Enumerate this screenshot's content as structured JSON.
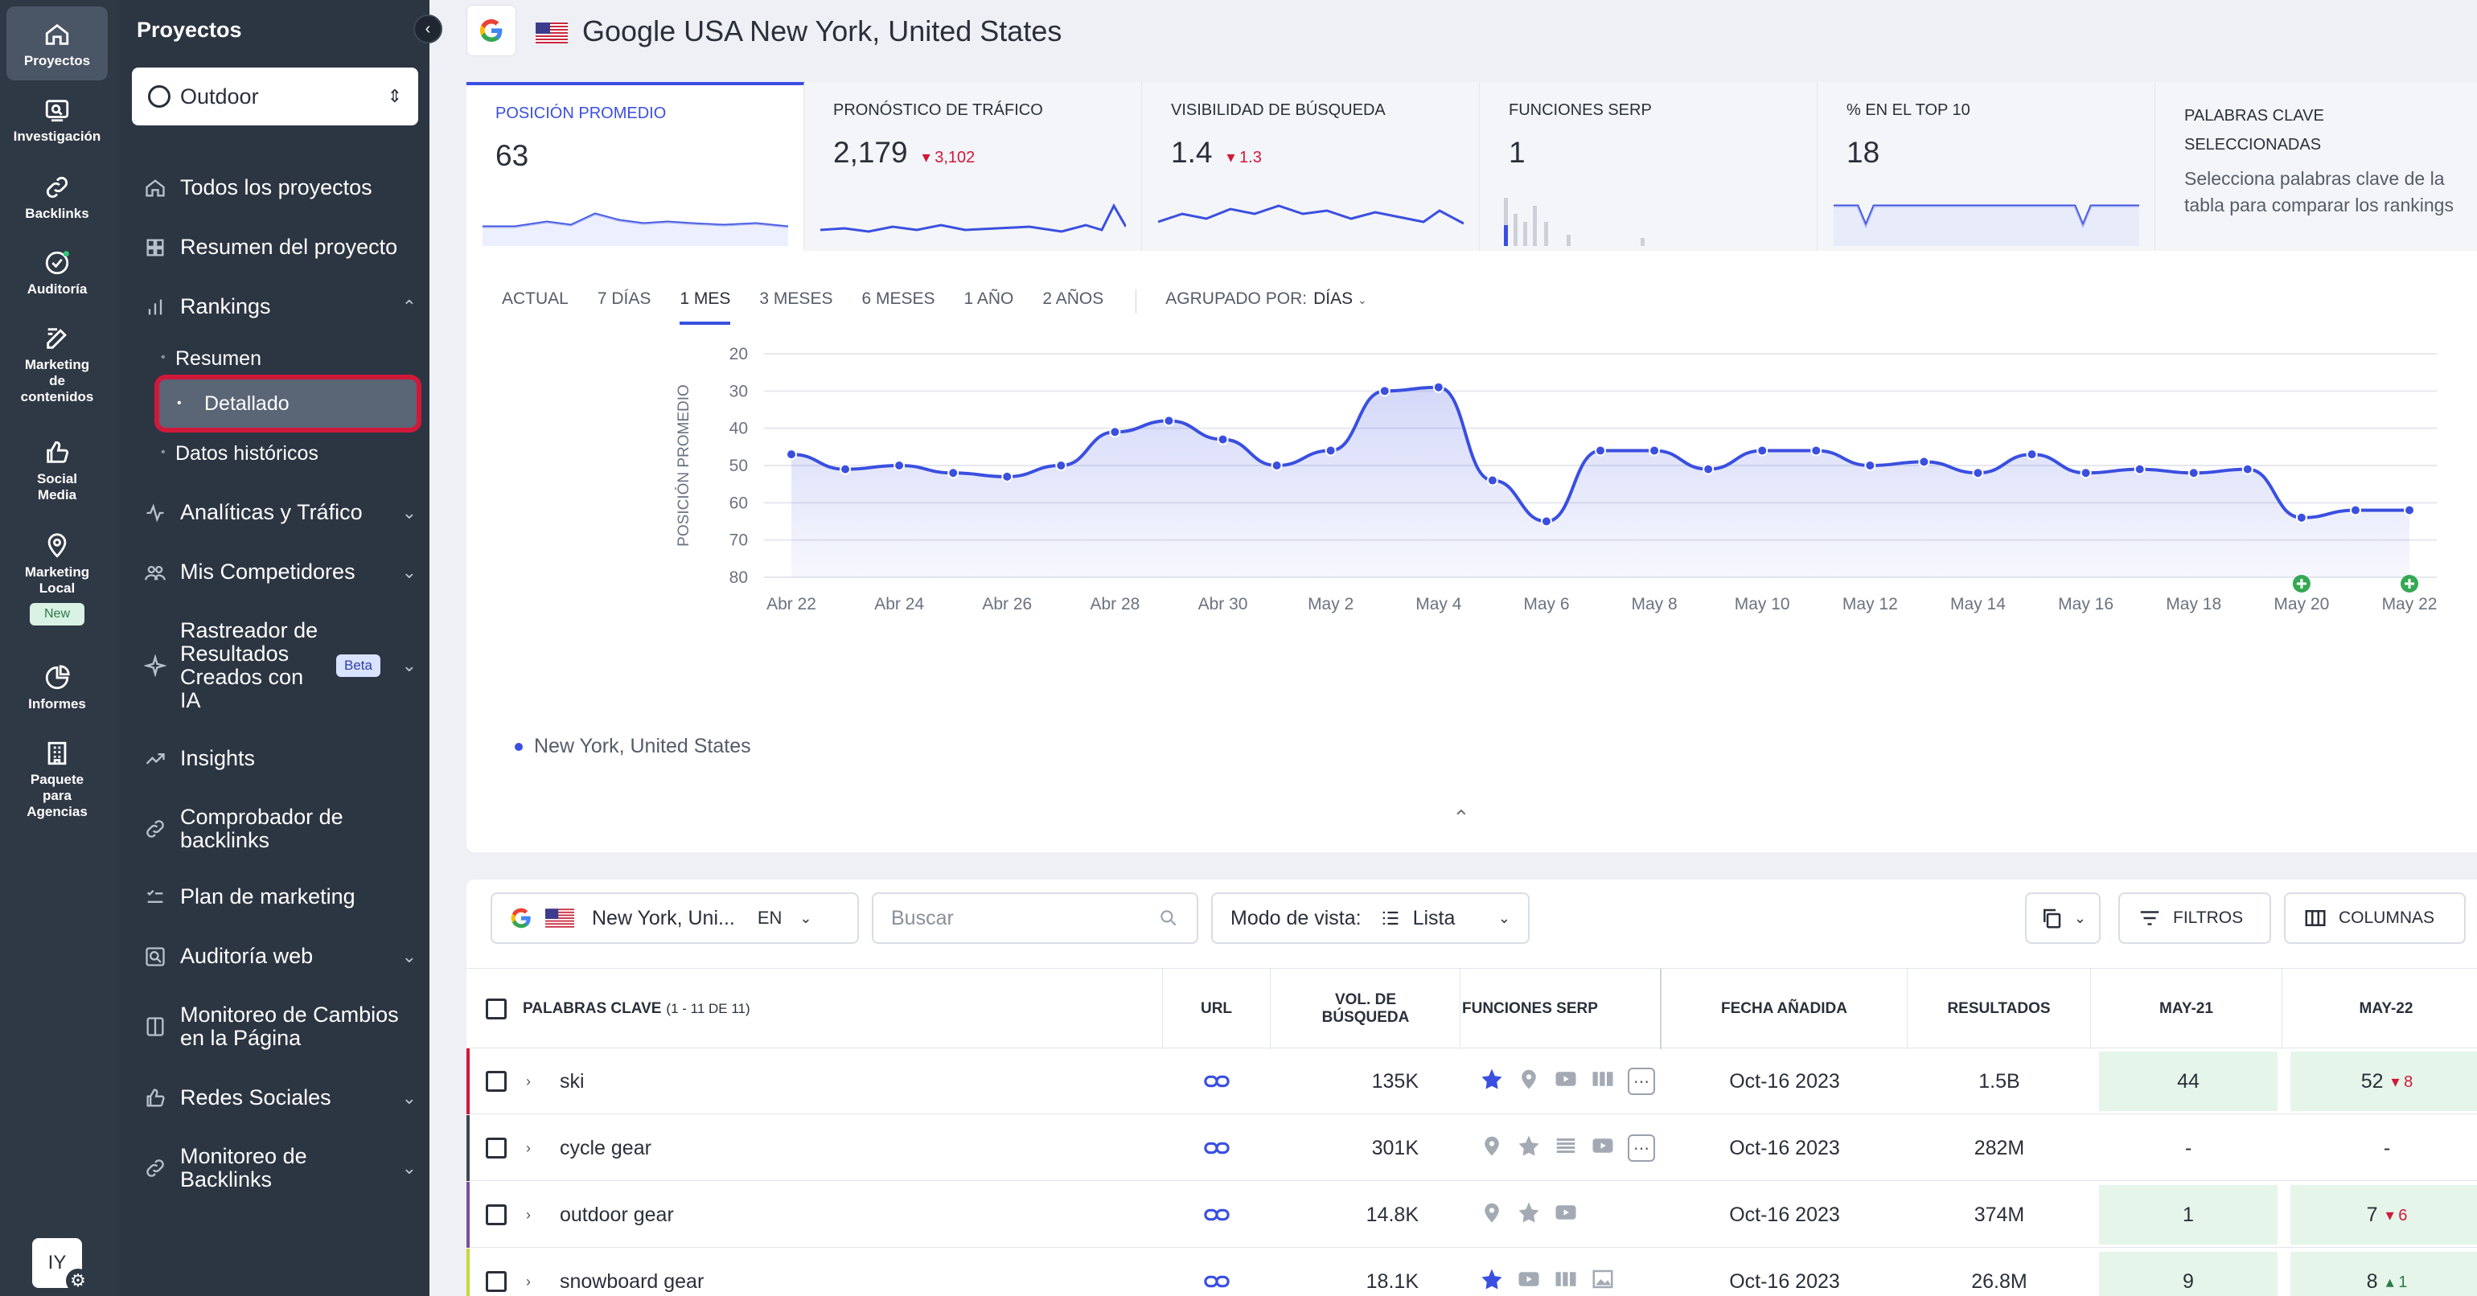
{
  "rail": {
    "items": [
      {
        "label": "Proyectos",
        "icon": "home-icon"
      },
      {
        "label": "Investigación",
        "icon": "research-icon"
      },
      {
        "label": "Backlinks",
        "icon": "link-icon"
      },
      {
        "label": "Auditoría",
        "icon": "audit-icon"
      },
      {
        "label": "Marketing de contenidos",
        "icon": "edit-icon"
      },
      {
        "label": "Social Media",
        "icon": "thumbs-up-icon"
      },
      {
        "label": "Marketing Local",
        "icon": "map-pin-icon",
        "badge": "New"
      },
      {
        "label": "Informes",
        "icon": "pie-chart-icon"
      },
      {
        "label": "Paquete para Agencias",
        "icon": "building-icon"
      }
    ],
    "avatar": "IY"
  },
  "sidebar": {
    "title": "Proyectos",
    "project": "Outdoor",
    "nav": {
      "todos": "Todos los proyectos",
      "resumen_proyecto": "Resumen del proyecto",
      "rankings": "Rankings",
      "sub_resumen": "Resumen",
      "sub_detallado": "Detallado",
      "sub_historicos": "Datos históricos",
      "analiticas": "Analíticas y Tráfico",
      "competidores": "Mis Competidores",
      "rastreador": "Rastreador de Resultados Creados con IA",
      "beta": "Beta",
      "insights": "Insights",
      "comprobador": "Comprobador de backlinks",
      "plan": "Plan de marketing",
      "auditoria_web": "Auditoría web",
      "monitoreo_cambios": "Monitoreo de Cambios en la Página",
      "redes": "Redes Sociales",
      "monitoreo_backlinks": "Monitoreo de Backlinks"
    }
  },
  "header": {
    "title": "Google USA New York, United States"
  },
  "metrics": [
    {
      "label": "Posición promedio",
      "value": "63",
      "delta": ""
    },
    {
      "label": "Pronóstico de tráfico",
      "value": "2,179",
      "delta": "3,102"
    },
    {
      "label": "Visibilidad de búsqueda",
      "value": "1.4",
      "delta": "1.3"
    },
    {
      "label": "Funciones SERP",
      "value": "1",
      "delta": ""
    },
    {
      "label": "% en el top 10",
      "value": "18",
      "delta": ""
    },
    {
      "label": "Palabras clave seleccionadas",
      "desc": "Selecciona palabras clave de la tabla para comparar los rankings"
    }
  ],
  "periods": [
    "ACTUAL",
    "7 DÍAS",
    "1 MES",
    "3 MESES",
    "6 MESES",
    "1 AÑO",
    "2 AÑOS"
  ],
  "active_period": "1 MES",
  "grouping": {
    "label": "AGRUPADO POR:",
    "value": "DÍAS"
  },
  "chart_data": {
    "type": "area",
    "ylabel": "POSICIÓN PROMEDIO",
    "y_reversed": true,
    "ylim": [
      20,
      80
    ],
    "yticks": [
      20,
      30,
      40,
      50,
      60,
      70,
      80
    ],
    "xtick_labels": [
      "Abr 22",
      "Abr 24",
      "Abr 26",
      "Abr 28",
      "Abr 30",
      "May 2",
      "May 4",
      "May 6",
      "May 8",
      "May 10",
      "May 12",
      "May 14",
      "May 16",
      "May 18",
      "May 20",
      "May 22"
    ],
    "series": [
      {
        "name": "New York, United States",
        "color": "#3a4fe0",
        "values": [
          47,
          51,
          50,
          52,
          53,
          50,
          41,
          38,
          43,
          50,
          46,
          30,
          29,
          54,
          65,
          46,
          46,
          51,
          46,
          46,
          50,
          49,
          52,
          47,
          52,
          51,
          52,
          51,
          64,
          62,
          62
        ]
      }
    ],
    "markers": [
      {
        "x": "May 20",
        "symbol": "plus"
      },
      {
        "x": "May 22",
        "symbol": "plus"
      }
    ],
    "grid": true
  },
  "legend_label": "New York, United States",
  "table_toolbar": {
    "location": "New York, Uni...",
    "lang": "EN",
    "search_placeholder": "Buscar",
    "view_mode_label": "Modo de vista:",
    "view_mode_value": "Lista",
    "filters": "FILTROS",
    "columns": "COLUMNAS"
  },
  "table": {
    "headers": {
      "keywords": "Palabras clave",
      "keywords_count": "(1 - 11 DE 11)",
      "url": "URL",
      "volume": "VOL. DE BÚSQUEDA",
      "serp": "FUNCIONES SERP",
      "date": "FECHA AÑADIDA",
      "results": "RESULTADOS",
      "may21": "MAY-21",
      "may22": "MAY-22"
    },
    "rows": [
      {
        "keyword": "ski",
        "volume": "135K",
        "date": "Oct-16 2023",
        "results": "1.5B",
        "may21": "44",
        "may22": "52",
        "delta": "8",
        "dir": "down",
        "bar": "#d0193a",
        "serp": [
          "star-icon",
          "map-pin-icon",
          "video-icon",
          "images-icon",
          "more-icon"
        ]
      },
      {
        "keyword": "cycle gear",
        "volume": "301K",
        "date": "Oct-16 2023",
        "results": "282M",
        "may21": "-",
        "may22": "-",
        "delta": "",
        "dir": "",
        "bar": "#3f4652",
        "serp": [
          "map-pin-icon",
          "star-icon",
          "list-icon",
          "video-icon",
          "more-icon"
        ]
      },
      {
        "keyword": "outdoor gear",
        "volume": "14.8K",
        "date": "Oct-16 2023",
        "results": "374M",
        "may21": "1",
        "may22": "7",
        "delta": "6",
        "dir": "down",
        "bar": "#7a4f9a",
        "serp": [
          "map-pin-icon",
          "star-icon",
          "video-icon"
        ]
      },
      {
        "keyword": "snowboard gear",
        "volume": "18.1K",
        "date": "Oct-16 2023",
        "results": "26.8M",
        "may21": "9",
        "may22": "8",
        "delta": "1",
        "dir": "up",
        "bar": "#c6d83a",
        "serp": [
          "star-icon",
          "video-icon",
          "images-icon",
          "image-icon"
        ]
      }
    ]
  }
}
